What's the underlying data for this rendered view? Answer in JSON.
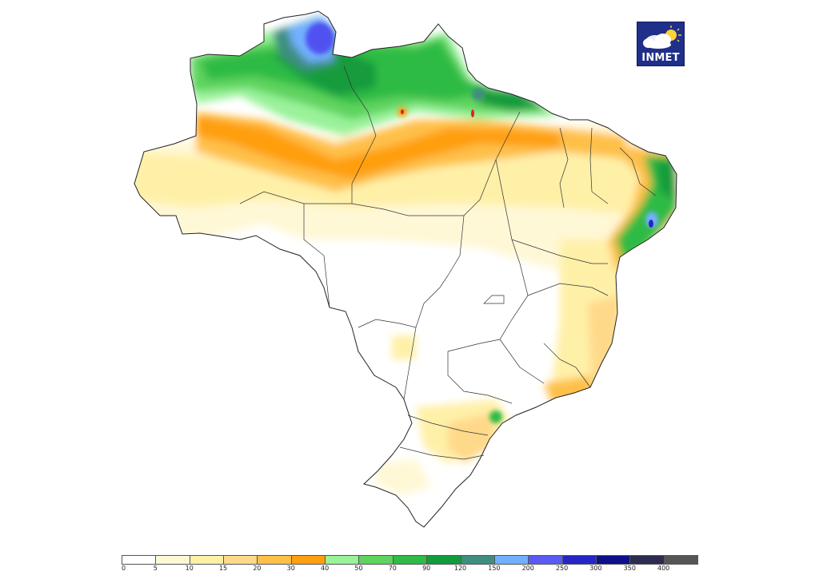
{
  "logo": {
    "text": "INMET",
    "icon": "cloud-sun-icon"
  },
  "legend": {
    "labels": [
      "0",
      "5",
      "10",
      "15",
      "20",
      "30",
      "40",
      "50",
      "70",
      "90",
      "120",
      "150",
      "200",
      "250",
      "300",
      "350",
      "400"
    ],
    "colors": [
      "#ffffff",
      "#fff8d6",
      "#fff0a8",
      "#ffd98a",
      "#ffc04a",
      "#ff9f10",
      "#9af29a",
      "#5ed35e",
      "#2fbb45",
      "#129b3c",
      "#3e8e80",
      "#72b0ff",
      "#5a5af5",
      "#2525c8",
      "#0f0f8a",
      "#2c2c50",
      "#555555"
    ]
  },
  "map": {
    "region": "Brazil",
    "colors": {
      "blue_deep": "#5151f0",
      "blue_light": "#72b0ff",
      "teal": "#3e8e80",
      "green_dark": "#129b3c",
      "green": "#2fbb45",
      "green_mid": "#5ed35e",
      "green_light": "#9af29a",
      "orange": "#ff9f10",
      "orange_light": "#ffc04a",
      "peach": "#ffd98a",
      "yellow": "#fff0a8",
      "cream": "#fff8d6",
      "red": "#e02020"
    }
  }
}
